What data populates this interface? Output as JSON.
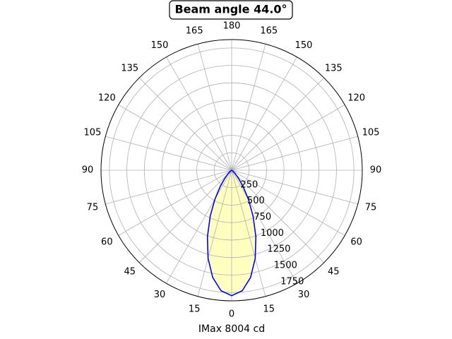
{
  "chart_data": {
    "type": "polar",
    "title": "Beam angle 44.0°",
    "xlabel": "IMax 8004 cd",
    "x": [
      -90,
      -85,
      -80,
      -75,
      -70,
      -65,
      -60,
      -55,
      -50,
      -45,
      -40,
      -35,
      -30,
      -25,
      -20,
      -15,
      -10,
      -5,
      0,
      5,
      10,
      15,
      20,
      25,
      30,
      35,
      40,
      45,
      50,
      55,
      60,
      65,
      70,
      75,
      80,
      85,
      90
    ],
    "values": [
      0,
      0,
      0,
      0,
      0,
      1,
      3,
      11,
      31,
      74,
      155,
      287,
      478,
      726,
      1013,
      1305,
      1559,
      1733,
      1795,
      1733,
      1559,
      1305,
      1013,
      726,
      478,
      287,
      155,
      74,
      31,
      11,
      3,
      1,
      0,
      0,
      0,
      0,
      0
    ],
    "color": "#0000ff",
    "fill_color": "#ffffc0",
    "ylim": [
      0,
      1870
    ],
    "yticks": [
      250,
      500,
      750,
      1000,
      1250,
      1500,
      1750
    ],
    "xticks": [
      0,
      15,
      30,
      45,
      60,
      75,
      90,
      105,
      120,
      135,
      150,
      165,
      180,
      {
        "value": -15,
        "label": "15"
      },
      {
        "value": -30,
        "label": "30"
      },
      {
        "value": -45,
        "label": "45"
      },
      {
        "value": -60,
        "label": "60"
      },
      {
        "value": -75,
        "label": "75"
      },
      {
        "value": -90,
        "label": "90"
      },
      {
        "value": -105,
        "label": "105"
      },
      {
        "value": -120,
        "label": "120"
      },
      {
        "value": -135,
        "label": "135"
      },
      {
        "value": -150,
        "label": "150"
      },
      {
        "value": -165,
        "label": "165"
      }
    ],
    "grid": true
  }
}
